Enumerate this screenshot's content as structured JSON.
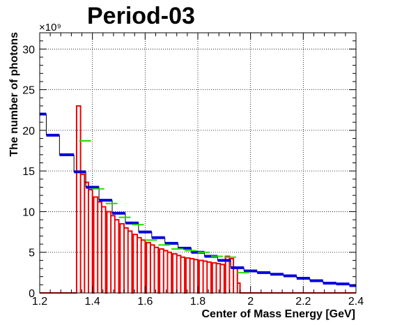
{
  "chart_data": {
    "type": "histogram",
    "title": "Period-03",
    "xlabel": "Center of Mass Energy [GeV]",
    "ylabel": "The number of photons",
    "y_multiplier": "×10⁹",
    "xlim": [
      1.2,
      2.4
    ],
    "ylim": [
      0,
      32
    ],
    "x_ticks": [
      "1.2",
      "1.4",
      "1.6",
      "1.8",
      "2",
      "2.2",
      "2.4"
    ],
    "y_ticks": [
      "0",
      "5",
      "10",
      "15",
      "20",
      "25",
      "30"
    ],
    "grid": true,
    "colors": {
      "blue": "#0000dd",
      "green": "#22dd00",
      "red": "#ee0000",
      "black": "#000000"
    },
    "series": [
      {
        "style": "step-blue",
        "color": "blue",
        "bins": [
          [
            1.2,
            1.225,
            22.0
          ],
          [
            1.225,
            1.275,
            19.4
          ],
          [
            1.275,
            1.33,
            17.0
          ],
          [
            1.33,
            1.375,
            14.9
          ],
          [
            1.375,
            1.425,
            13.0
          ],
          [
            1.425,
            1.475,
            11.4
          ],
          [
            1.475,
            1.525,
            9.8
          ],
          [
            1.525,
            1.575,
            8.6
          ],
          [
            1.575,
            1.625,
            7.5
          ],
          [
            1.625,
            1.675,
            6.8
          ],
          [
            1.675,
            1.725,
            6.1
          ],
          [
            1.725,
            1.775,
            5.5
          ],
          [
            1.775,
            1.825,
            5.0
          ],
          [
            1.825,
            1.875,
            4.5
          ],
          [
            1.875,
            1.925,
            4.0
          ],
          [
            1.925,
            1.975,
            3.1
          ],
          [
            1.975,
            2.025,
            2.7
          ],
          [
            2.025,
            2.075,
            2.5
          ],
          [
            2.075,
            2.125,
            2.3
          ],
          [
            2.125,
            2.175,
            2.1
          ],
          [
            2.175,
            2.225,
            1.8
          ],
          [
            2.225,
            2.275,
            1.5
          ],
          [
            2.275,
            2.325,
            1.2
          ],
          [
            2.325,
            2.375,
            1.1
          ],
          [
            2.375,
            2.4,
            0.9
          ]
        ]
      },
      {
        "style": "segments-green",
        "color": "green",
        "bins": [
          [
            1.35,
            1.395,
            18.7
          ],
          [
            1.4,
            1.445,
            12.8
          ],
          [
            1.45,
            1.495,
            11.0
          ],
          [
            1.5,
            1.545,
            9.3
          ],
          [
            1.55,
            1.595,
            8.4
          ],
          [
            1.6,
            1.645,
            6.5
          ],
          [
            1.65,
            1.695,
            5.9
          ],
          [
            1.7,
            1.745,
            5.4
          ],
          [
            1.75,
            1.795,
            5.2
          ],
          [
            1.8,
            1.845,
            5.0
          ],
          [
            1.85,
            1.895,
            4.5
          ],
          [
            1.9,
            1.945,
            4.4
          ],
          [
            1.95,
            1.995,
            2.5
          ]
        ]
      },
      {
        "style": "bars-red",
        "color": "red",
        "bins": [
          [
            1.34,
            1.355,
            23.0
          ],
          [
            1.355,
            1.37,
            14.6
          ],
          [
            1.37,
            1.385,
            13.6
          ],
          [
            1.385,
            1.4,
            12.7
          ],
          [
            1.405,
            1.42,
            11.8
          ],
          [
            1.42,
            1.435,
            11.2
          ],
          [
            1.435,
            1.45,
            10.6
          ],
          [
            1.455,
            1.47,
            10.0
          ],
          [
            1.47,
            1.485,
            9.5
          ],
          [
            1.485,
            1.5,
            9.0
          ],
          [
            1.505,
            1.52,
            8.5
          ],
          [
            1.52,
            1.535,
            8.0
          ],
          [
            1.535,
            1.55,
            7.6
          ],
          [
            1.555,
            1.57,
            7.2
          ],
          [
            1.57,
            1.585,
            6.8
          ],
          [
            1.585,
            1.6,
            6.5
          ],
          [
            1.605,
            1.62,
            6.2
          ],
          [
            1.62,
            1.635,
            5.9
          ],
          [
            1.635,
            1.65,
            5.6
          ],
          [
            1.655,
            1.67,
            5.4
          ],
          [
            1.67,
            1.685,
            5.2
          ],
          [
            1.685,
            1.7,
            5.0
          ],
          [
            1.705,
            1.72,
            4.8
          ],
          [
            1.72,
            1.735,
            4.6
          ],
          [
            1.735,
            1.75,
            4.4
          ],
          [
            1.755,
            1.77,
            4.3
          ],
          [
            1.77,
            1.785,
            4.2
          ],
          [
            1.785,
            1.8,
            4.1
          ],
          [
            1.805,
            1.82,
            4.0
          ],
          [
            1.82,
            1.835,
            3.9
          ],
          [
            1.835,
            1.85,
            3.8
          ],
          [
            1.855,
            1.87,
            3.7
          ],
          [
            1.87,
            1.885,
            3.6
          ],
          [
            1.885,
            1.9,
            3.5
          ],
          [
            1.905,
            1.92,
            4.5
          ],
          [
            1.92,
            1.935,
            4.2
          ],
          [
            1.935,
            1.95,
            3.0
          ],
          [
            1.95,
            1.96,
            1.2
          ]
        ]
      }
    ]
  }
}
